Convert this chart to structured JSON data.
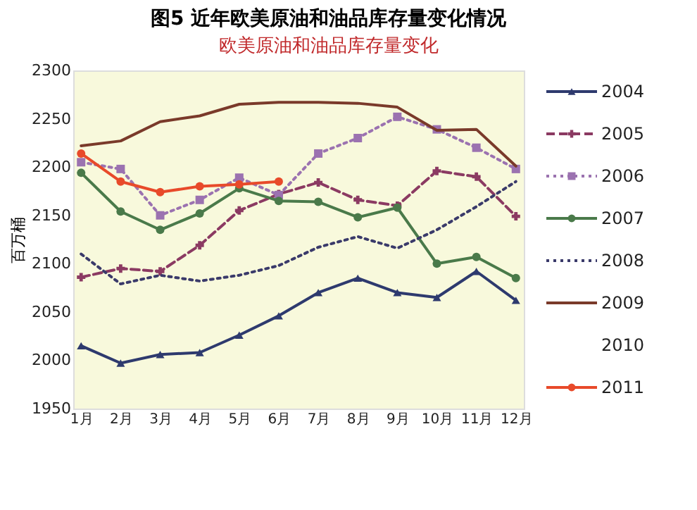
{
  "chart_data": {
    "type": "line",
    "title": "图5  近年欧美原油和油品库存量变化情况",
    "subtitle": "欧美原油和油品库存量变化",
    "ylabel": "百万桶",
    "categories": [
      "1月",
      "2月",
      "3月",
      "4月",
      "5月",
      "6月",
      "7月",
      "8月",
      "9月",
      "10月",
      "11月",
      "12月"
    ],
    "series": [
      {
        "name": "2004",
        "color": "#2e3a6e",
        "marker": "triangle",
        "line_style": "solid",
        "values": [
          2015,
          1997,
          2006,
          2008,
          2026,
          2046,
          2070,
          2085,
          2070,
          2065,
          2092,
          2062
        ]
      },
      {
        "name": "2005",
        "color": "#8b3a62",
        "marker": "cross",
        "line_style": "dashed",
        "values": [
          2086,
          2095,
          2092,
          2119,
          2155,
          2172,
          2184,
          2166,
          2160,
          2196,
          2190,
          2149
        ]
      },
      {
        "name": "2006",
        "color": "#9b72b0",
        "marker": "square",
        "line_style": "dotted",
        "values": [
          2205,
          2198,
          2150,
          2166,
          2189,
          2171,
          2214,
          2230,
          2252,
          2239,
          2220,
          2198
        ]
      },
      {
        "name": "2007",
        "color": "#4a7a4a",
        "marker": "circle",
        "line_style": "solid",
        "values": [
          2194,
          2154,
          2135,
          2152,
          2178,
          2165,
          2164,
          2148,
          2158,
          2100,
          2107,
          2085
        ]
      },
      {
        "name": "2008",
        "color": "#3a3a6a",
        "line_style": "dotted",
        "values": [
          2110,
          2079,
          2088,
          2082,
          2088,
          2098,
          2117,
          2128,
          2116,
          2135,
          2159,
          2185
        ]
      },
      {
        "name": "2009",
        "color": "#7a3a2a",
        "line_style": "solid",
        "values": [
          2222,
          2227,
          2247,
          2253,
          2265,
          2267,
          2267,
          2266,
          2262,
          2238,
          2239,
          2201
        ]
      },
      {
        "name": "2010",
        "values": [
          null,
          null,
          null,
          null,
          null,
          null,
          null,
          null,
          null,
          null,
          null,
          null
        ]
      },
      {
        "name": "2011",
        "color": "#e84a2a",
        "marker": "circle",
        "line_style": "solid",
        "values": [
          2214,
          2185,
          2174,
          2180,
          2182,
          2185,
          null,
          null,
          null,
          null,
          null,
          null
        ]
      }
    ],
    "ylim": [
      1950,
      2300
    ],
    "yticks": [
      1950,
      2000,
      2050,
      2100,
      2150,
      2200,
      2250,
      2300
    ],
    "legend": "right"
  }
}
